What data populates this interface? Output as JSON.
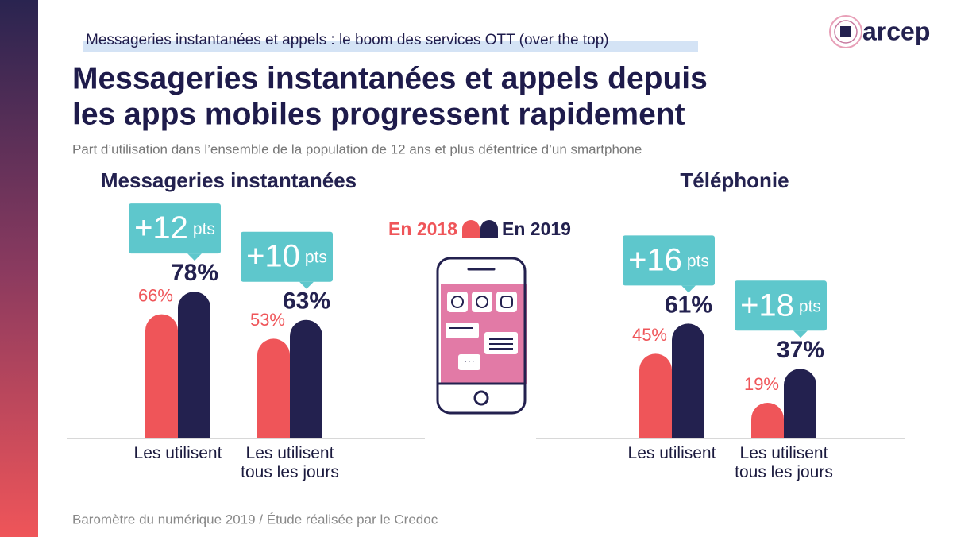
{
  "header": {
    "kicker": "Messageries instantanées et appels : le boom des services OTT (over the top)",
    "title_lines": [
      "Messageries instantanées et appels depuis",
      "les apps mobiles progressent rapidement"
    ],
    "subtitle": "Part d’utilisation dans l’ensemble de la population de 12 ans et plus détentrice d’un smartphone",
    "logo": "arcep"
  },
  "chart_data": [
    {
      "type": "bar",
      "title": "Messageries instantanées",
      "categories": [
        "Les utilisent",
        "Les utilisent tous les jours"
      ],
      "series": [
        {
          "name": "En 2018",
          "color": "#ef5559",
          "values": [
            66,
            53
          ],
          "value_labels": [
            "66%",
            "53%"
          ]
        },
        {
          "name": "En 2019",
          "color": "#23214f",
          "values": [
            78,
            63
          ],
          "value_labels": [
            "78%",
            "63%"
          ]
        }
      ],
      "annotations": [
        {
          "text": "+12",
          "unit": "pts"
        },
        {
          "text": "+10",
          "unit": "pts"
        }
      ]
    },
    {
      "type": "bar",
      "title": "Téléphonie",
      "categories": [
        "Les utilisent",
        "Les utilisent tous les jours"
      ],
      "series": [
        {
          "name": "En 2018",
          "color": "#ef5559",
          "values": [
            45,
            19
          ],
          "value_labels": [
            "45%",
            "19%"
          ]
        },
        {
          "name": "En 2019",
          "color": "#23214f",
          "values": [
            61,
            37
          ],
          "value_labels": [
            "61%",
            "37%"
          ]
        }
      ],
      "annotations": [
        {
          "text": "+16",
          "unit": "pts"
        },
        {
          "text": "+18",
          "unit": "pts"
        }
      ]
    }
  ],
  "source": "Baromètre du numérique 2019 / Étude réalisée par le Credoc"
}
